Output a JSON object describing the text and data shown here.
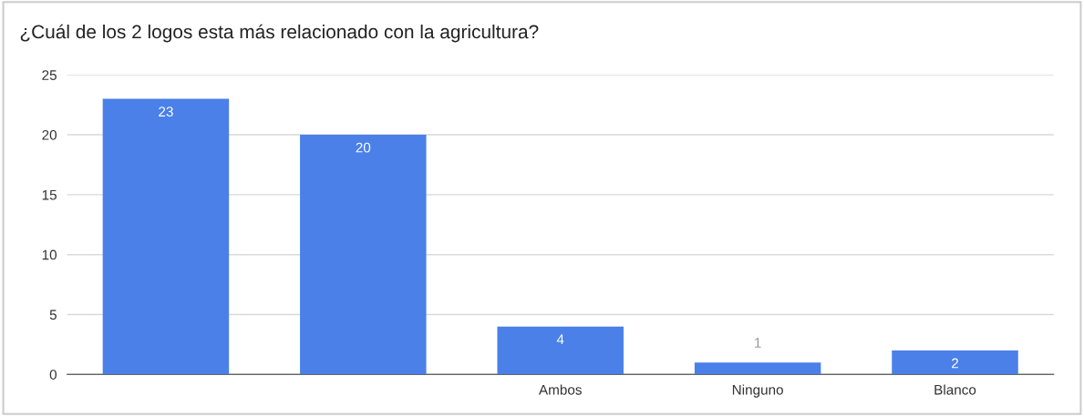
{
  "chart_data": {
    "type": "bar",
    "title": "¿Cuál de los 2 logos esta más relacionado con la agricultura?",
    "categories": [
      null,
      null,
      "Ambos",
      "Ninguno",
      "Blanco"
    ],
    "values": [
      23,
      20,
      4,
      1,
      2
    ],
    "color": "#4a80e8",
    "ylim": [
      0,
      25
    ],
    "yticks": [
      0,
      5,
      10,
      15,
      20,
      25
    ],
    "grid": "y",
    "data_labels": true,
    "legend": false
  }
}
